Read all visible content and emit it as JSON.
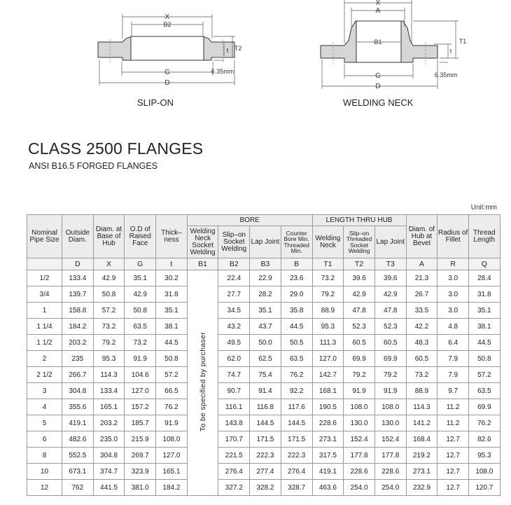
{
  "drawings": {
    "slip_on": {
      "caption": "SLIP-ON",
      "labels": {
        "x": "X",
        "b2": "B2",
        "g": "G",
        "d": "D",
        "t": "t",
        "t2": "T2",
        "raised": "6.35mm"
      }
    },
    "welding_neck": {
      "caption": "WELDING NECK",
      "labels": {
        "x": "X",
        "a": "A",
        "b1": "B1",
        "g": "G",
        "d": "D",
        "t": "t",
        "t1": "T1",
        "raised": "6.35mm"
      }
    }
  },
  "title": "CLASS 2500 FLANGES",
  "subtitle": "ANSI B16.5 FORGED FLANGES",
  "unit": "Unit:mm",
  "table": {
    "group_headers": {
      "bore": "BORE",
      "length": "LENGTH THRU HUB"
    },
    "headers": [
      "Nominal Pipe Size",
      "Outside Diam.",
      "Diam. at Base of Hub",
      "O.D of Raised Face",
      "Thick–ness",
      "Welding Neck Socket Welding",
      "Slip–on Socket Welding",
      "Lap Joint",
      "Counter Bore Min. Threaded Min.",
      "Welding Neck",
      "Slip–on Threaded Socket Welding",
      "Lap Joint",
      "Diam. of Hub at Bevel",
      "Radius of Fillet",
      "Thread Length"
    ],
    "symbols": [
      "",
      "D",
      "X",
      "G",
      "t",
      "B1",
      "B2",
      "B3",
      "B",
      "T1",
      "T2",
      "T3",
      "A",
      "R",
      "Q"
    ],
    "b1_note": "To be specified by purchaser",
    "rows": [
      [
        "1/2",
        "133.4",
        "42.9",
        "35.1",
        "30.2",
        "22.4",
        "22.9",
        "23.6",
        "73.2",
        "39.6",
        "39.6",
        "21.3",
        "3.0",
        "28.4"
      ],
      [
        "3/4",
        "139.7",
        "50.8",
        "42.9",
        "31.8",
        "27.7",
        "28.2",
        "29.0",
        "79.2",
        "42.9",
        "42.9",
        "26.7",
        "3.0",
        "31.8"
      ],
      [
        "1",
        "158.8",
        "57.2",
        "50.8",
        "35.1",
        "34.5",
        "35.1",
        "35.8",
        "88.9",
        "47.8",
        "47.8",
        "33.5",
        "3.0",
        "35.1"
      ],
      [
        "1 1/4",
        "184.2",
        "73.2",
        "63.5",
        "38.1",
        "43.2",
        "43.7",
        "44.5",
        "95.3",
        "52.3",
        "52.3",
        "42.2",
        "4.8",
        "38.1"
      ],
      [
        "1 1/2",
        "203.2",
        "79.2",
        "73.2",
        "44.5",
        "49.5",
        "50.0",
        "50.5",
        "111.3",
        "60.5",
        "60.5",
        "48.3",
        "6.4",
        "44.5"
      ],
      [
        "2",
        "235",
        "95.3",
        "91.9",
        "50.8",
        "62.0",
        "62.5",
        "63.5",
        "127.0",
        "69.9",
        "69.9",
        "60.5",
        "7.9",
        "50.8"
      ],
      [
        "2 1/2",
        "266.7",
        "114.3",
        "104.6",
        "57.2",
        "74.7",
        "75.4",
        "76.2",
        "142.7",
        "79.2",
        "79.2",
        "73.2",
        "7.9",
        "57.2"
      ],
      [
        "3",
        "304.8",
        "133.4",
        "127.0",
        "66.5",
        "90.7",
        "91.4",
        "92.2",
        "168.1",
        "91.9",
        "91.9",
        "88.9",
        "9.7",
        "63.5"
      ],
      [
        "4",
        "355.6",
        "165.1",
        "157.2",
        "76.2",
        "116.1",
        "116.8",
        "117.6",
        "190.5",
        "108.0",
        "108.0",
        "114.3",
        "11.2",
        "69.9"
      ],
      [
        "5",
        "419.1",
        "203.2",
        "185.7",
        "91.9",
        "143.8",
        "144.5",
        "144.5",
        "228.6",
        "130.0",
        "130.0",
        "141.2",
        "11.2",
        "76.2"
      ],
      [
        "6",
        "482.6",
        "235.0",
        "215.9",
        "108.0",
        "170.7",
        "171.5",
        "171.5",
        "273.1",
        "152.4",
        "152.4",
        "168.4",
        "12.7",
        "82.6"
      ],
      [
        "8",
        "552.5",
        "304.8",
        "269.7",
        "127.0",
        "221.5",
        "222.3",
        "222.3",
        "317.5",
        "177.8",
        "177.8",
        "219.2",
        "12.7",
        "95.3"
      ],
      [
        "10",
        "673.1",
        "374.7",
        "323.9",
        "165.1",
        "276.4",
        "277.4",
        "276.4",
        "419.1",
        "228.6",
        "228.6",
        "273.1",
        "12.7",
        "108.0"
      ],
      [
        "12",
        "762",
        "441.5",
        "381.0",
        "184.2",
        "327.2",
        "328.2",
        "328.7",
        "463.6",
        "254.0",
        "254.0",
        "232.9",
        "12.7",
        "120.7"
      ]
    ]
  }
}
